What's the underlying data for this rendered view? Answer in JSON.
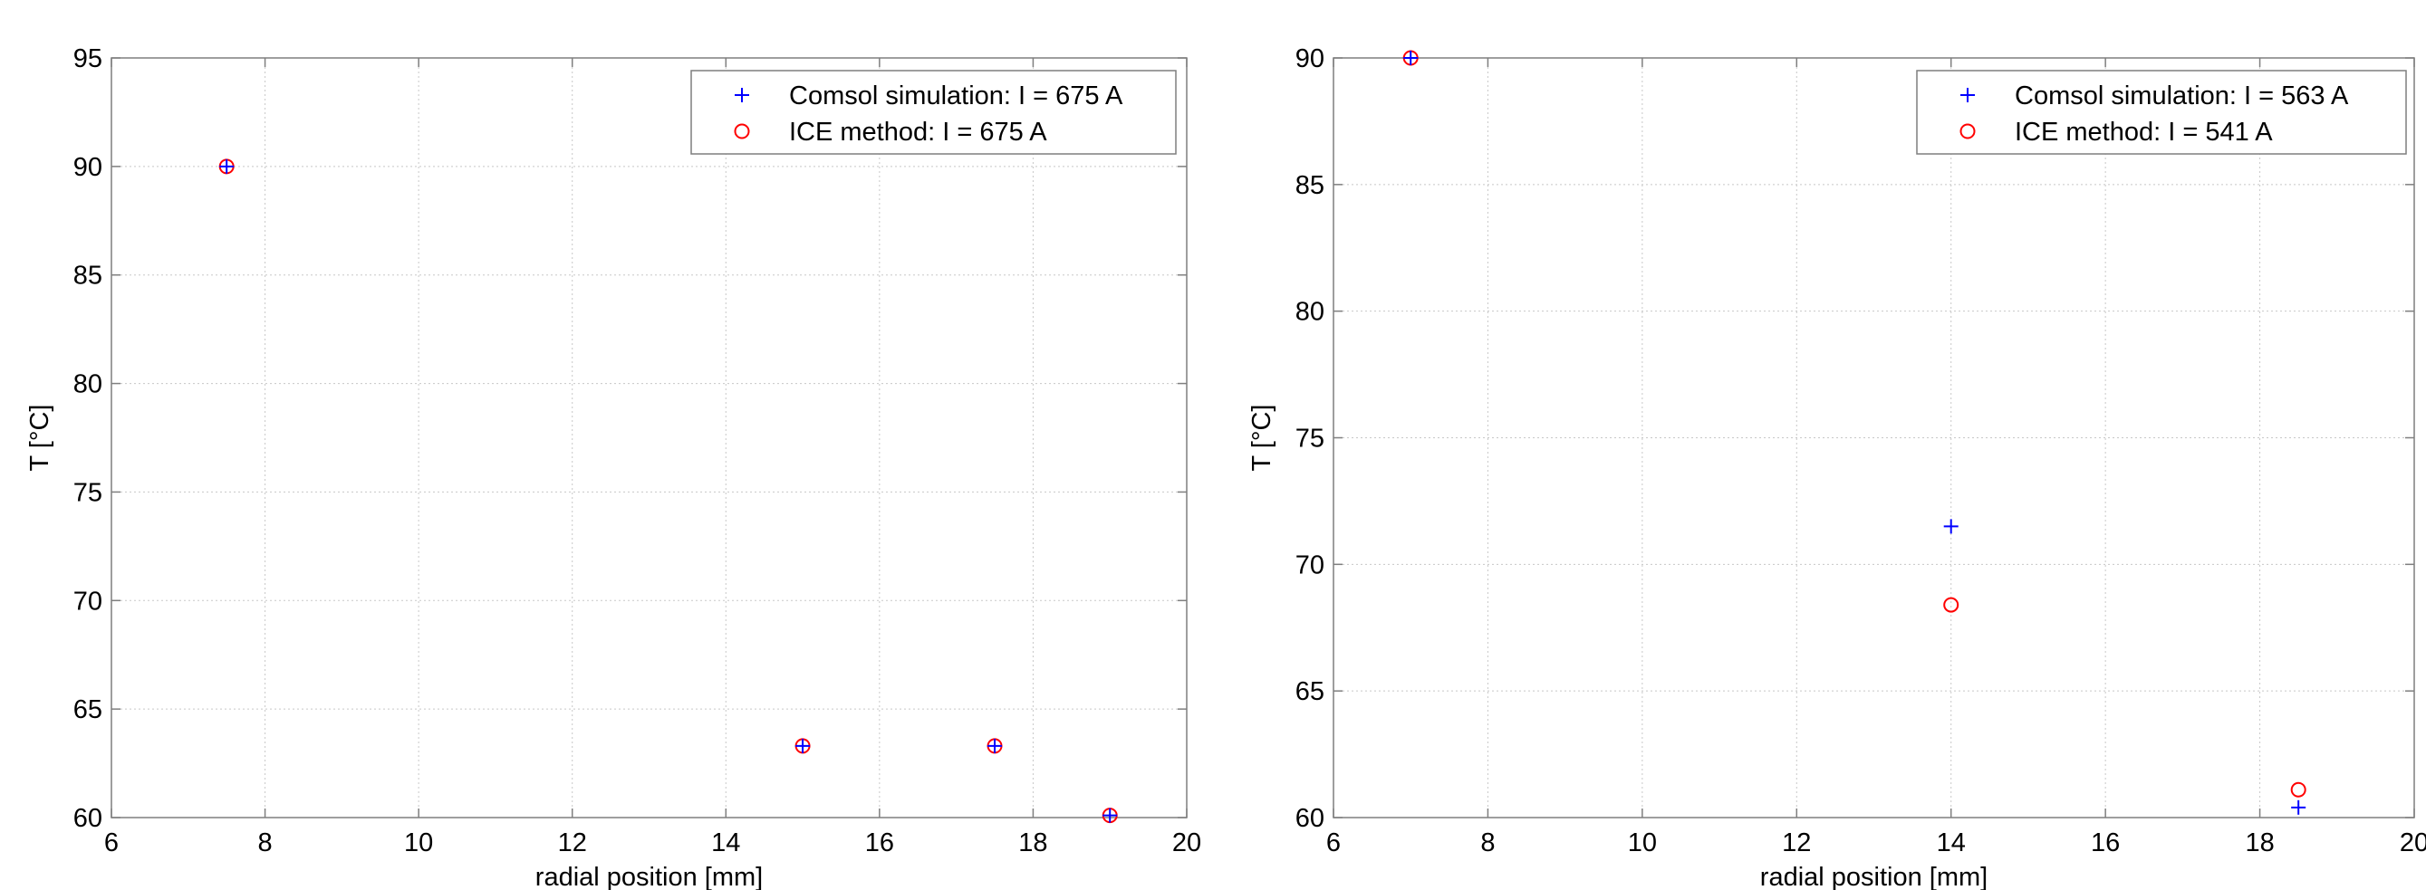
{
  "chart_data": [
    {
      "type": "scatter",
      "title": "",
      "xlabel": "radial position [mm]",
      "ylabel": "T [°C]",
      "xlim": [
        6,
        20
      ],
      "ylim": [
        60,
        95
      ],
      "xticks": [
        6,
        8,
        10,
        12,
        14,
        16,
        18,
        20
      ],
      "yticks": [
        60,
        65,
        70,
        75,
        80,
        85,
        90,
        95
      ],
      "grid": true,
      "legend_position": "top-right",
      "series": [
        {
          "name": "Comsol simulation: I = 675 A",
          "marker": "plus",
          "color": "#0000ff",
          "x": [
            7.5,
            15,
            17.5,
            19
          ],
          "y": [
            90,
            63.3,
            63.3,
            60.1
          ]
        },
        {
          "name": "ICE method: I = 675 A",
          "marker": "circle",
          "color": "#ff0000",
          "x": [
            7.5,
            15,
            17.5,
            19
          ],
          "y": [
            90,
            63.3,
            63.3,
            60.1
          ]
        }
      ]
    },
    {
      "type": "scatter",
      "title": "",
      "xlabel": "radial position [mm]",
      "ylabel": "T [°C]",
      "xlim": [
        6,
        20
      ],
      "ylim": [
        60,
        90
      ],
      "xticks": [
        6,
        8,
        10,
        12,
        14,
        16,
        18,
        20
      ],
      "yticks": [
        60,
        65,
        70,
        75,
        80,
        85,
        90
      ],
      "grid": true,
      "legend_position": "top-right",
      "series": [
        {
          "name": "Comsol simulation: I = 563 A",
          "marker": "plus",
          "color": "#0000ff",
          "x": [
            7,
            14,
            18.5
          ],
          "y": [
            90,
            71.5,
            60.4
          ]
        },
        {
          "name": "ICE method: I = 541 A",
          "marker": "circle",
          "color": "#ff0000",
          "x": [
            7,
            14,
            18.5
          ],
          "y": [
            90,
            68.4,
            61.1
          ]
        }
      ]
    }
  ]
}
